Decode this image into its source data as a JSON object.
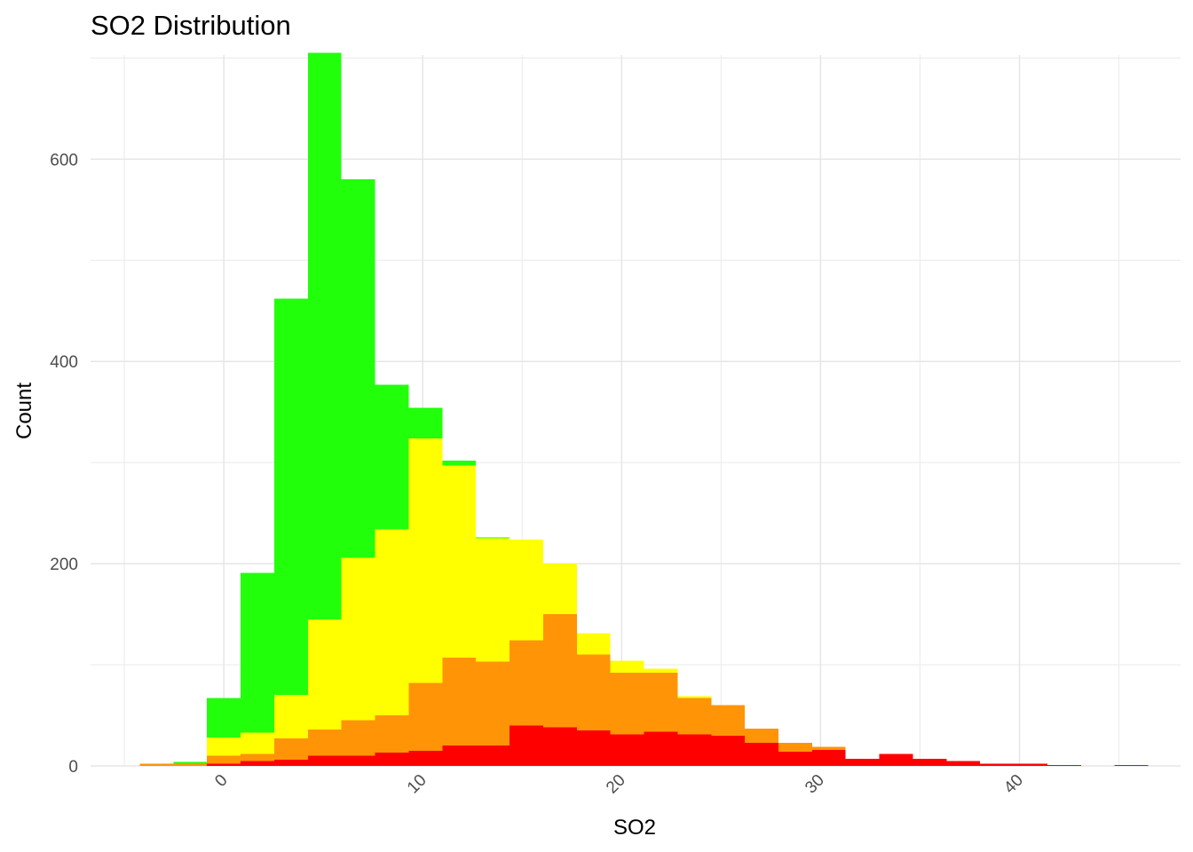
{
  "chart_data": {
    "type": "bar",
    "stacked": true,
    "title": "SO2 Distribution",
    "xlabel": "SO2",
    "ylabel": "Count",
    "xlim": [
      -6.7,
      48.1
    ],
    "ylim": [
      0,
      703
    ],
    "x_ticks": [
      0,
      10,
      20,
      30,
      40
    ],
    "x_ticks_minor": [
      -5,
      5,
      15,
      25,
      35,
      45
    ],
    "y_ticks": [
      0,
      200,
      400,
      600
    ],
    "y_ticks_minor": [
      100,
      300,
      500,
      700
    ],
    "grid": true,
    "legend": "none",
    "bin_width": 1.69,
    "x": [
      -3.38,
      -1.69,
      0.0,
      1.69,
      3.38,
      5.07,
      6.76,
      8.45,
      10.14,
      11.83,
      13.52,
      15.21,
      16.9,
      18.59,
      20.28,
      21.97,
      23.66,
      25.35,
      27.04,
      28.73,
      30.42,
      32.11,
      33.8,
      35.49,
      37.18,
      38.87,
      40.56,
      42.25,
      43.94,
      45.63
    ],
    "series": [
      {
        "color": "#ff0000",
        "values": [
          0,
          0,
          2,
          5,
          6,
          10,
          10,
          13,
          15,
          20,
          20,
          40,
          38,
          35,
          31,
          34,
          31,
          30,
          23,
          14,
          16,
          7,
          12,
          7,
          5,
          2,
          2,
          1,
          0,
          1
        ]
      },
      {
        "color": "#ff9407",
        "values": [
          2,
          2,
          8,
          7,
          21,
          26,
          35,
          37,
          67,
          87,
          83,
          84,
          112,
          75,
          61,
          58,
          36,
          30,
          14,
          9,
          3,
          0,
          0,
          0,
          0,
          0,
          0,
          0,
          0,
          0
        ]
      },
      {
        "color": "#ffff00",
        "values": [
          0,
          0,
          18,
          21,
          43,
          109,
          161,
          184,
          242,
          190,
          122,
          100,
          50,
          21,
          12,
          4,
          2,
          0,
          0,
          0,
          0,
          0,
          0,
          0,
          0,
          0,
          0,
          0,
          0,
          0
        ]
      },
      {
        "color": "#22ff0b",
        "values": [
          0,
          2,
          39,
          158,
          392,
          560,
          374,
          143,
          30,
          5,
          1,
          0,
          0,
          0,
          0,
          0,
          0,
          0,
          0,
          0,
          0,
          0,
          0,
          0,
          0,
          0,
          0,
          0,
          0,
          0
        ]
      }
    ]
  }
}
